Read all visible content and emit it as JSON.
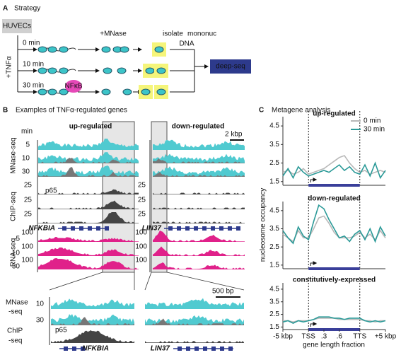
{
  "panel_a": {
    "letter": "A",
    "title": "Strategy",
    "cell": "HUVECs",
    "treatment": "+TNFα",
    "times": [
      "0 min",
      "10 min",
      "30 min"
    ],
    "digest": "+MNase",
    "isolate": [
      "isolate",
      "mononuc",
      "DNA"
    ],
    "factor": "NFκB",
    "output": "deep-seq"
  },
  "panel_b": {
    "letter": "B",
    "title": "Examples of TNFα-regulated genes",
    "columns": [
      "up-regulated",
      "down-regulated"
    ],
    "time_header": "min",
    "scale": "2 kbp",
    "assays": [
      "MNase-seq",
      "ChIP-seq",
      "RNA-seq"
    ],
    "mnase_times": [
      "5",
      "10",
      "30"
    ],
    "chip_scale": "25",
    "chip_factor": "p65",
    "rna_scale": "100",
    "rna_times": [
      "5",
      "10",
      "30"
    ],
    "genes": [
      "NFKBIA",
      "LIN37"
    ],
    "zoom": {
      "scale": "500 bp",
      "mnase": [
        "MNase",
        "-seq"
      ],
      "mnase_times": [
        "10",
        "30"
      ],
      "chip": [
        "ChIP",
        "-seq"
      ],
      "chip_factor": "p65",
      "genes": [
        "NFKBIA",
        "LIN37"
      ]
    }
  },
  "panel_c": {
    "letter": "C",
    "title": "Metagene analysis",
    "ylabel": "nucleosome occupancy",
    "xlabel": "gene length fraction"
  },
  "chart_data": [
    {
      "type": "line",
      "title": "up-regulated",
      "x": [
        0,
        1,
        2,
        3,
        4,
        5,
        6,
        7,
        8,
        9,
        10,
        11,
        12,
        13,
        14,
        15,
        16,
        17,
        18,
        19,
        20
      ],
      "xlim": [
        0,
        20
      ],
      "ylim": [
        1.3,
        5.0
      ],
      "yticks": [
        1.5,
        2.5,
        3.5,
        4.5
      ],
      "series": [
        {
          "name": "0 min",
          "color": "#b8b8b8",
          "values": [
            2.0,
            2.1,
            1.9,
            2.0,
            2.2,
            1.9,
            2.0,
            2.1,
            2.2,
            2.4,
            2.6,
            2.8,
            2.9,
            2.5,
            2.2,
            2.0,
            2.1,
            1.9,
            2.0,
            2.1,
            2.0
          ]
        },
        {
          "name": "30 min",
          "color": "#2b9a98",
          "values": [
            1.8,
            2.2,
            1.7,
            2.3,
            2.0,
            1.8,
            1.9,
            2.0,
            2.1,
            2.0,
            2.2,
            2.4,
            2.1,
            2.3,
            2.0,
            1.9,
            2.4,
            1.8,
            2.5,
            1.7,
            2.1
          ]
        }
      ]
    },
    {
      "type": "line",
      "title": "down-regulated",
      "x": [
        0,
        1,
        2,
        3,
        4,
        5,
        6,
        7,
        8,
        9,
        10,
        11,
        12,
        13,
        14,
        15,
        16,
        17,
        18,
        19,
        20
      ],
      "xlim": [
        0,
        20
      ],
      "ylim": [
        1.3,
        5.0
      ],
      "yticks": [
        1.5,
        2.5,
        3.5,
        4.5
      ],
      "series": [
        {
          "color": "#b8b8b8",
          "values": [
            3.2,
            3.0,
            2.8,
            3.4,
            3.0,
            3.0,
            3.5,
            4.1,
            4.2,
            3.8,
            3.3,
            3.0,
            3.0,
            3.0,
            3.1,
            3.3,
            3.0,
            3.2,
            2.9,
            3.4,
            3.0
          ]
        },
        {
          "color": "#2b9a98",
          "values": [
            3.4,
            3.0,
            2.7,
            3.6,
            3.1,
            2.9,
            3.9,
            4.8,
            4.6,
            4.0,
            3.5,
            3.0,
            3.1,
            2.8,
            3.2,
            3.4,
            2.9,
            3.5,
            2.8,
            3.6,
            3.1
          ]
        }
      ]
    },
    {
      "type": "line",
      "title": "constitutively-expressed",
      "x": [
        0,
        1,
        2,
        3,
        4,
        5,
        6,
        7,
        8,
        9,
        10,
        11,
        12,
        13,
        14,
        15,
        16,
        17,
        18,
        19,
        20
      ],
      "xlim": [
        0,
        20
      ],
      "ylim": [
        1.3,
        5.0
      ],
      "yticks": [
        1.5,
        2.5,
        3.5,
        4.5
      ],
      "xticks": [
        {
          "value": 0,
          "label": "-5 kbp"
        },
        {
          "value": 5,
          "label": "TSS"
        },
        {
          "value": 8,
          "label": ".3"
        },
        {
          "value": 11,
          "label": ".6"
        },
        {
          "value": 15,
          "label": "TTS"
        },
        {
          "value": 20,
          "label": "+5 kbp"
        }
      ],
      "series": [
        {
          "color": "#b8b8b8",
          "values": [
            2.0,
            2.0,
            1.9,
            2.0,
            2.0,
            2.0,
            2.1,
            2.2,
            2.2,
            2.2,
            2.2,
            2.1,
            2.1,
            2.1,
            2.1,
            2.1,
            2.0,
            2.0,
            1.9,
            2.0,
            2.0
          ]
        },
        {
          "color": "#2b9a98",
          "values": [
            1.9,
            2.0,
            1.8,
            2.0,
            1.9,
            2.0,
            2.1,
            2.3,
            2.3,
            2.3,
            2.2,
            2.2,
            2.1,
            2.2,
            2.2,
            2.2,
            2.0,
            1.9,
            2.0,
            1.9,
            2.0
          ]
        }
      ]
    }
  ]
}
